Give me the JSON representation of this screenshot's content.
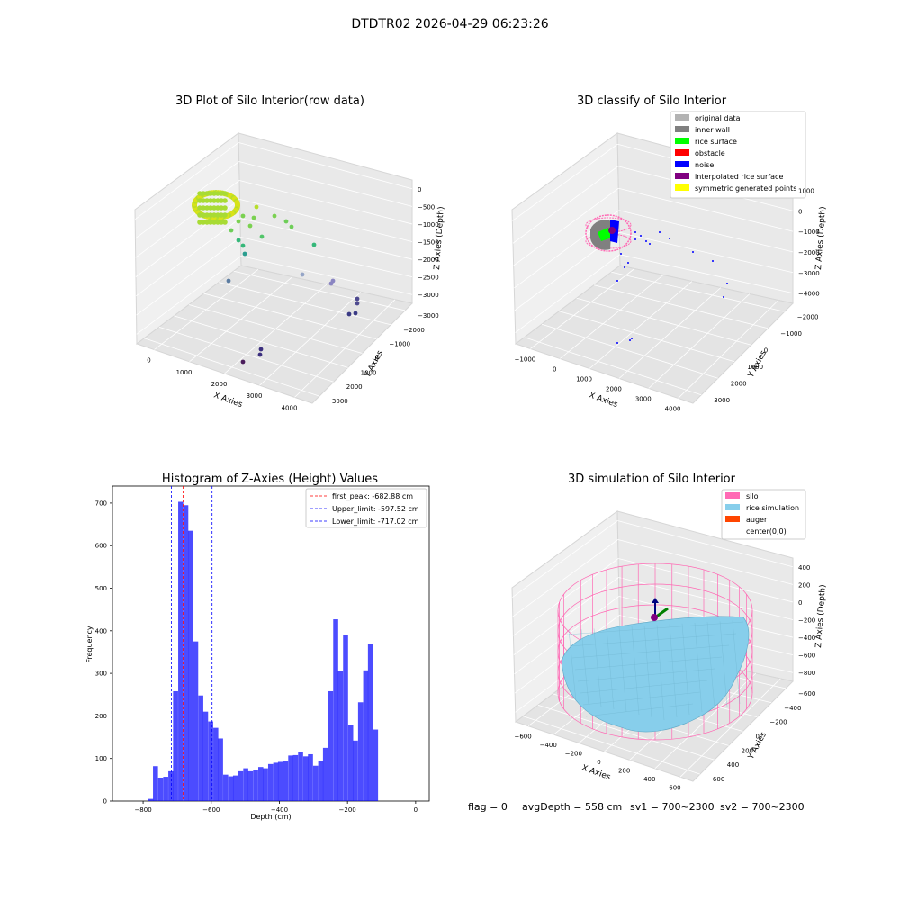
{
  "page": {
    "suptitle": "DTDTR02 2026-04-29 06:23:26",
    "footer": {
      "flag": "flag = 0",
      "avg_depth": "avgDepth = 558 cm",
      "sv1": "sv1 = 700~2300",
      "sv2": "sv2 = 700~2300"
    }
  },
  "chart_data": [
    {
      "type": "scatter",
      "projection": "3d",
      "title": "3D Plot of Silo Interior(row data)",
      "xlabel": "X Axies",
      "ylabel": "Y Axies",
      "zlabel": "Z Axies (Depth)",
      "x_ticks": [
        "0",
        "1000",
        "2000",
        "3000",
        "4000"
      ],
      "y_ticks": [
        "−3000",
        "−2000",
        "−1000",
        "0",
        "1000",
        "2000",
        "3000"
      ],
      "z_ticks": [
        "−3000",
        "−2500",
        "−2000",
        "−1500",
        "−1000",
        "−500",
        "0"
      ],
      "colormap": "viridis (by depth)",
      "points": [
        {
          "x": 0,
          "y": 0,
          "z": -600
        },
        {
          "x": 900,
          "y": 400,
          "z": -900
        },
        {
          "x": 1300,
          "y": 300,
          "z": -1200
        },
        {
          "x": 1800,
          "y": -200,
          "z": -1800
        },
        {
          "x": 2300,
          "y": -800,
          "z": -2100
        },
        {
          "x": 3500,
          "y": -500,
          "z": -2400
        },
        {
          "x": 3800,
          "y": -400,
          "z": -2700
        },
        {
          "x": 2700,
          "y": -2300,
          "z": -2900
        }
      ]
    },
    {
      "type": "scatter",
      "projection": "3d",
      "title": "3D classify of Silo Interior",
      "xlabel": "X Axies",
      "ylabel": "Y Axies",
      "zlabel": "Z Axies (Depth)",
      "x_ticks": [
        "−1000",
        "0",
        "1000",
        "2000",
        "3000",
        "4000"
      ],
      "y_ticks": [
        "−2000",
        "−1000",
        "0",
        "1000",
        "2000",
        "3000"
      ],
      "z_ticks": [
        "−4000",
        "−3000",
        "−2000",
        "−1000",
        "0",
        "1000"
      ],
      "legend_position": "top-right",
      "legend": [
        {
          "label": "original data",
          "color": "#b3b3b3"
        },
        {
          "label": "inner wall",
          "color": "#808080"
        },
        {
          "label": "rice surface",
          "color": "#00ff00"
        },
        {
          "label": "obstacle",
          "color": "#ff0000"
        },
        {
          "label": "noise",
          "color": "#0000ff"
        },
        {
          "label": "interpolated rice surface",
          "color": "#800080"
        },
        {
          "label": "symmetric generated points",
          "color": "#ffff00"
        }
      ]
    },
    {
      "type": "bar",
      "title": "Histogram of Z-Axies (Height) Values",
      "xlabel": "Depth (cm)",
      "ylabel": "Frequency",
      "xlim": [
        -890,
        40
      ],
      "ylim": [
        0,
        740
      ],
      "x_ticks": [
        -800,
        -600,
        -400,
        -200,
        0
      ],
      "y_ticks": [
        0,
        100,
        200,
        300,
        400,
        500,
        600,
        700
      ],
      "bar_color": "#0000ff",
      "bin_width": 14.7,
      "bins": [
        {
          "x": -785,
          "value": 5
        },
        {
          "x": -771,
          "value": 82
        },
        {
          "x": -756,
          "value": 55
        },
        {
          "x": -741,
          "value": 57
        },
        {
          "x": -726,
          "value": 70
        },
        {
          "x": -712,
          "value": 258
        },
        {
          "x": -697,
          "value": 703
        },
        {
          "x": -682,
          "value": 695
        },
        {
          "x": -668,
          "value": 635
        },
        {
          "x": -653,
          "value": 375
        },
        {
          "x": -638,
          "value": 248
        },
        {
          "x": -624,
          "value": 210
        },
        {
          "x": -609,
          "value": 187
        },
        {
          "x": -594,
          "value": 172
        },
        {
          "x": -580,
          "value": 147
        },
        {
          "x": -565,
          "value": 62
        },
        {
          "x": -550,
          "value": 58
        },
        {
          "x": -536,
          "value": 60
        },
        {
          "x": -521,
          "value": 70
        },
        {
          "x": -506,
          "value": 77
        },
        {
          "x": -492,
          "value": 70
        },
        {
          "x": -477,
          "value": 73
        },
        {
          "x": -462,
          "value": 80
        },
        {
          "x": -448,
          "value": 77
        },
        {
          "x": -433,
          "value": 87
        },
        {
          "x": -418,
          "value": 90
        },
        {
          "x": -404,
          "value": 92
        },
        {
          "x": -389,
          "value": 93
        },
        {
          "x": -374,
          "value": 107
        },
        {
          "x": -360,
          "value": 108
        },
        {
          "x": -345,
          "value": 115
        },
        {
          "x": -330,
          "value": 105
        },
        {
          "x": -316,
          "value": 110
        },
        {
          "x": -301,
          "value": 83
        },
        {
          "x": -286,
          "value": 95
        },
        {
          "x": -272,
          "value": 125
        },
        {
          "x": -257,
          "value": 258
        },
        {
          "x": -242,
          "value": 427
        },
        {
          "x": -228,
          "value": 305
        },
        {
          "x": -213,
          "value": 390
        },
        {
          "x": -198,
          "value": 178
        },
        {
          "x": -184,
          "value": 142
        },
        {
          "x": -169,
          "value": 232
        },
        {
          "x": -154,
          "value": 307
        },
        {
          "x": -140,
          "value": 370
        },
        {
          "x": -125,
          "value": 168
        }
      ],
      "vlines": [
        {
          "label": "first_peak: -682.88 cm",
          "x": -682.88,
          "color": "#ff0000"
        },
        {
          "label": "Upper_limit: -597.52 cm",
          "x": -597.52,
          "color": "#0000ff"
        },
        {
          "label": "Lower_limit: -717.02 cm",
          "x": -717.02,
          "color": "#0000ff"
        }
      ],
      "legend_position": "top-right"
    },
    {
      "type": "surface",
      "projection": "3d",
      "title": "3D simulation of Silo Interior",
      "xlabel": "X Axies",
      "ylabel": "Y Axies",
      "zlabel": "Z Axies (Depth)",
      "x_ticks": [
        "−600",
        "−400",
        "−200",
        "0",
        "200",
        "400",
        "600"
      ],
      "y_ticks": [
        "−600",
        "−400",
        "−200",
        "0",
        "200",
        "400",
        "600"
      ],
      "z_ticks": [
        "−800",
        "−600",
        "−400",
        "−200",
        "0",
        "200",
        "400"
      ],
      "legend_position": "top-right",
      "legend": [
        {
          "label": "silo",
          "color": "#ff69b4"
        },
        {
          "label": "rice simulation",
          "color": "#87ceeb"
        },
        {
          "label": "auger",
          "color": "#ff4500"
        },
        {
          "label": "center(0,0)",
          "color": ""
        }
      ]
    }
  ]
}
